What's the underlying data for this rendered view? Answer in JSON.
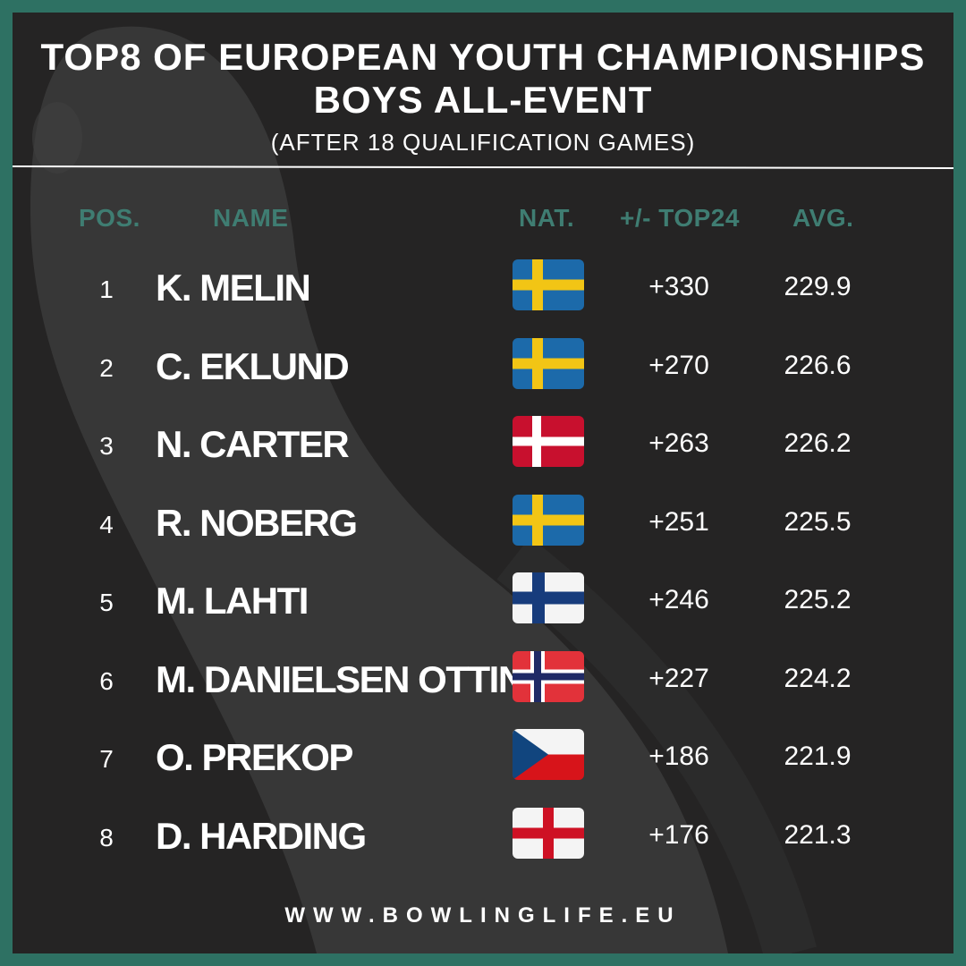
{
  "title": {
    "line1": "TOP8 OF EUROPEAN YOUTH CHAMPIONSHIPS",
    "line2": "BOYS ALL-EVENT",
    "line3": "(AFTER 18 QUALIFICATION GAMES)"
  },
  "headers": {
    "pos": "POS.",
    "name": "NAME",
    "nat": "NAT.",
    "diff": "+/- TOP24",
    "avg": "AVG."
  },
  "rows": [
    {
      "pos": "1",
      "name": "K. MELIN",
      "flag": "sweden-flag-icon",
      "diff": "+330",
      "avg": "229.9"
    },
    {
      "pos": "2",
      "name": "C. EKLUND",
      "flag": "sweden-flag-icon",
      "diff": "+270",
      "avg": "226.6"
    },
    {
      "pos": "3",
      "name": "N. CARTER",
      "flag": "denmark-flag-icon",
      "diff": "+263",
      "avg": "226.2"
    },
    {
      "pos": "4",
      "name": "R. NOBERG",
      "flag": "sweden-flag-icon",
      "diff": "+251",
      "avg": "225.5"
    },
    {
      "pos": "5",
      "name": "M. LAHTI",
      "flag": "finland-flag-icon",
      "diff": "+246",
      "avg": "225.2"
    },
    {
      "pos": "6",
      "name": "M. DANIELSEN OTTING",
      "flag": "norway-flag-icon",
      "diff": "+227",
      "avg": "224.2"
    },
    {
      "pos": "7",
      "name": "O. PREKOP",
      "flag": "czech-flag-icon",
      "diff": "+186",
      "avg": "221.9"
    },
    {
      "pos": "8",
      "name": "D. HARDING",
      "flag": "england-flag-icon",
      "diff": "+176",
      "avg": "221.3"
    }
  ],
  "footer": "WWW.BOWLINGLIFE.EU",
  "colors": {
    "frame": "#2e7163",
    "background": "#252424",
    "header_text": "#3f7d72",
    "text": "#ffffff"
  }
}
